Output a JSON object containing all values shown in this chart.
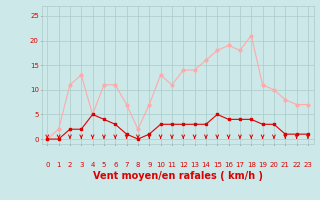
{
  "x": [
    0,
    1,
    2,
    3,
    4,
    5,
    6,
    7,
    8,
    9,
    10,
    11,
    12,
    13,
    14,
    15,
    16,
    17,
    18,
    19,
    20,
    21,
    22,
    23
  ],
  "wind_avg": [
    0,
    0,
    2,
    2,
    5,
    4,
    3,
    1,
    0,
    1,
    3,
    3,
    3,
    3,
    3,
    5,
    4,
    4,
    4,
    3,
    3,
    1,
    1,
    1
  ],
  "wind_gust": [
    0,
    2,
    11,
    13,
    5,
    11,
    11,
    7,
    2,
    7,
    13,
    11,
    14,
    14,
    16,
    18,
    19,
    18,
    21,
    11,
    10,
    8,
    7,
    7
  ],
  "bg_color": "#cce8e8",
  "grid_color": "#aacccc",
  "line_avg_color": "#dd0000",
  "line_gust_color": "#ffaaaa",
  "xlabel": "Vent moyen/en rafales ( km/h )",
  "ylabel_ticks": [
    0,
    5,
    10,
    15,
    20,
    25
  ],
  "xlim": [
    -0.5,
    23.5
  ],
  "ylim": [
    -1,
    27
  ],
  "arrow_color": "#dd0000",
  "font_color": "#dd0000",
  "tick_fontsize": 5,
  "xlabel_fontsize": 7
}
